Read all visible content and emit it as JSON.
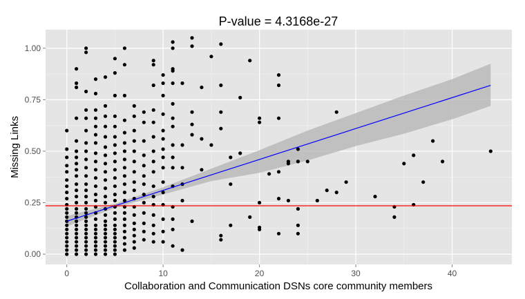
{
  "chart_data": {
    "type": "scatter",
    "title": "P-value = 4.3168e-27",
    "xlabel": "Collaboration and Communication DSNs core community members",
    "ylabel": "Missing Links",
    "xlim": [
      -2.2,
      46.2
    ],
    "ylim": [
      -0.05,
      1.09
    ],
    "x_ticks": [
      0,
      10,
      20,
      30,
      40
    ],
    "y_ticks": [
      0.0,
      0.25,
      0.5,
      0.75,
      1.0
    ],
    "x_tick_labels": [
      "0",
      "10",
      "20",
      "30",
      "40"
    ],
    "y_tick_labels": [
      "0.00",
      "0.25",
      "0.50",
      "0.75",
      "1.00"
    ],
    "grid": true,
    "background": "#e5e5e5",
    "point_color": "#000000",
    "points": [
      [
        0,
        0.0
      ],
      [
        0,
        0.02
      ],
      [
        0,
        0.04
      ],
      [
        0,
        0.06
      ],
      [
        0,
        0.08
      ],
      [
        0,
        0.1
      ],
      [
        0,
        0.12
      ],
      [
        0,
        0.14
      ],
      [
        0,
        0.16
      ],
      [
        0,
        0.18
      ],
      [
        0,
        0.2
      ],
      [
        0,
        0.22
      ],
      [
        0,
        0.24
      ],
      [
        0,
        0.27
      ],
      [
        0,
        0.3
      ],
      [
        0,
        0.33
      ],
      [
        0,
        0.36
      ],
      [
        0,
        0.4
      ],
      [
        0,
        0.43
      ],
      [
        0,
        0.47
      ],
      [
        0,
        0.51
      ],
      [
        0,
        0.6
      ],
      [
        1,
        0.0
      ],
      [
        1,
        0.02
      ],
      [
        1,
        0.04
      ],
      [
        1,
        0.06
      ],
      [
        1,
        0.08
      ],
      [
        1,
        0.1
      ],
      [
        1,
        0.12
      ],
      [
        1,
        0.14
      ],
      [
        1,
        0.16
      ],
      [
        1,
        0.18
      ],
      [
        1,
        0.2
      ],
      [
        1,
        0.22
      ],
      [
        1,
        0.25
      ],
      [
        1,
        0.28
      ],
      [
        1,
        0.31
      ],
      [
        1,
        0.34
      ],
      [
        1,
        0.38
      ],
      [
        1,
        0.41
      ],
      [
        1,
        0.44
      ],
      [
        1,
        0.47
      ],
      [
        1,
        0.5
      ],
      [
        1,
        0.55
      ],
      [
        1,
        0.66
      ],
      [
        1,
        0.81
      ],
      [
        1,
        0.83
      ],
      [
        1,
        0.9
      ],
      [
        2,
        0.0
      ],
      [
        2,
        0.02
      ],
      [
        2,
        0.04
      ],
      [
        2,
        0.06
      ],
      [
        2,
        0.08
      ],
      [
        2,
        0.1
      ],
      [
        2,
        0.12
      ],
      [
        2,
        0.14
      ],
      [
        2,
        0.16
      ],
      [
        2,
        0.18
      ],
      [
        2,
        0.2
      ],
      [
        2,
        0.22
      ],
      [
        2,
        0.25
      ],
      [
        2,
        0.28
      ],
      [
        2,
        0.31
      ],
      [
        2,
        0.34
      ],
      [
        2,
        0.38
      ],
      [
        2,
        0.42
      ],
      [
        2,
        0.46
      ],
      [
        2,
        0.5
      ],
      [
        2,
        0.54
      ],
      [
        2,
        0.6
      ],
      [
        2,
        0.66
      ],
      [
        2,
        0.7
      ],
      [
        2,
        0.79
      ],
      [
        2,
        0.98
      ],
      [
        2,
        1.0
      ],
      [
        3,
        0.0
      ],
      [
        3,
        0.02
      ],
      [
        3,
        0.04
      ],
      [
        3,
        0.06
      ],
      [
        3,
        0.08
      ],
      [
        3,
        0.1
      ],
      [
        3,
        0.12
      ],
      [
        3,
        0.14
      ],
      [
        3,
        0.17
      ],
      [
        3,
        0.2
      ],
      [
        3,
        0.23
      ],
      [
        3,
        0.26
      ],
      [
        3,
        0.29
      ],
      [
        3,
        0.33
      ],
      [
        3,
        0.37
      ],
      [
        3,
        0.41
      ],
      [
        3,
        0.45
      ],
      [
        3,
        0.49
      ],
      [
        3,
        0.54
      ],
      [
        3,
        0.58
      ],
      [
        3,
        0.62
      ],
      [
        3,
        0.66
      ],
      [
        3,
        0.7
      ],
      [
        3,
        0.78
      ],
      [
        3,
        0.85
      ],
      [
        4,
        0.0
      ],
      [
        4,
        0.02
      ],
      [
        4,
        0.04
      ],
      [
        4,
        0.06
      ],
      [
        4,
        0.08
      ],
      [
        4,
        0.1
      ],
      [
        4,
        0.12
      ],
      [
        4,
        0.14
      ],
      [
        4,
        0.16
      ],
      [
        4,
        0.19
      ],
      [
        4,
        0.22
      ],
      [
        4,
        0.25
      ],
      [
        4,
        0.28
      ],
      [
        4,
        0.32
      ],
      [
        4,
        0.36
      ],
      [
        4,
        0.4
      ],
      [
        4,
        0.44
      ],
      [
        4,
        0.48
      ],
      [
        4,
        0.52
      ],
      [
        4,
        0.57
      ],
      [
        4,
        0.62
      ],
      [
        4,
        0.67
      ],
      [
        4,
        0.72
      ],
      [
        4,
        0.86
      ],
      [
        5,
        0.0
      ],
      [
        5,
        0.02
      ],
      [
        5,
        0.04
      ],
      [
        5,
        0.06
      ],
      [
        5,
        0.08
      ],
      [
        5,
        0.1
      ],
      [
        5,
        0.12
      ],
      [
        5,
        0.14
      ],
      [
        5,
        0.17
      ],
      [
        5,
        0.2
      ],
      [
        5,
        0.23
      ],
      [
        5,
        0.26
      ],
      [
        5,
        0.29
      ],
      [
        5,
        0.33
      ],
      [
        5,
        0.37
      ],
      [
        5,
        0.41
      ],
      [
        5,
        0.45
      ],
      [
        5,
        0.49
      ],
      [
        5,
        0.53
      ],
      [
        5,
        0.57
      ],
      [
        5,
        0.62
      ],
      [
        5,
        0.67
      ],
      [
        5,
        0.77
      ],
      [
        5,
        0.88
      ],
      [
        5,
        0.95
      ],
      [
        6,
        0.02
      ],
      [
        6,
        0.05
      ],
      [
        6,
        0.08
      ],
      [
        6,
        0.11
      ],
      [
        6,
        0.14
      ],
      [
        6,
        0.17
      ],
      [
        6,
        0.2
      ],
      [
        6,
        0.23
      ],
      [
        6,
        0.26
      ],
      [
        6,
        0.3
      ],
      [
        6,
        0.34
      ],
      [
        6,
        0.38
      ],
      [
        6,
        0.42
      ],
      [
        6,
        0.46
      ],
      [
        6,
        0.5
      ],
      [
        6,
        0.54
      ],
      [
        6,
        0.59
      ],
      [
        6,
        0.65
      ],
      [
        6,
        0.77
      ],
      [
        6,
        0.92
      ],
      [
        6,
        1.0
      ],
      [
        7,
        0.03
      ],
      [
        7,
        0.06
      ],
      [
        7,
        0.09
      ],
      [
        7,
        0.12
      ],
      [
        7,
        0.15
      ],
      [
        7,
        0.19
      ],
      [
        7,
        0.23
      ],
      [
        7,
        0.27
      ],
      [
        7,
        0.31
      ],
      [
        7,
        0.35
      ],
      [
        7,
        0.4
      ],
      [
        7,
        0.45
      ],
      [
        7,
        0.5
      ],
      [
        7,
        0.55
      ],
      [
        7,
        0.6
      ],
      [
        7,
        0.67
      ],
      [
        7,
        0.72
      ],
      [
        8,
        0.07
      ],
      [
        8,
        0.11
      ],
      [
        8,
        0.15
      ],
      [
        8,
        0.2
      ],
      [
        8,
        0.25
      ],
      [
        8,
        0.29
      ],
      [
        8,
        0.34
      ],
      [
        8,
        0.38
      ],
      [
        8,
        0.43
      ],
      [
        8,
        0.48
      ],
      [
        8,
        0.55
      ],
      [
        8,
        0.64
      ],
      [
        8,
        0.69
      ],
      [
        9,
        0.06
      ],
      [
        9,
        0.1
      ],
      [
        9,
        0.14
      ],
      [
        9,
        0.19
      ],
      [
        9,
        0.24
      ],
      [
        9,
        0.28
      ],
      [
        9,
        0.33
      ],
      [
        9,
        0.4
      ],
      [
        9,
        0.45
      ],
      [
        9,
        0.5
      ],
      [
        9,
        0.57
      ],
      [
        9,
        0.64
      ],
      [
        9,
        0.7
      ],
      [
        9,
        0.82
      ],
      [
        9,
        0.92
      ],
      [
        9,
        0.94
      ],
      [
        10,
        0.06
      ],
      [
        10,
        0.11
      ],
      [
        10,
        0.17
      ],
      [
        10,
        0.24
      ],
      [
        10,
        0.3
      ],
      [
        10,
        0.35
      ],
      [
        10,
        0.42
      ],
      [
        10,
        0.47
      ],
      [
        10,
        0.51
      ],
      [
        10,
        0.56
      ],
      [
        10,
        0.6
      ],
      [
        10,
        0.68
      ],
      [
        10,
        0.77
      ],
      [
        10,
        0.83
      ],
      [
        10,
        0.87
      ],
      [
        11,
        0.04
      ],
      [
        11,
        0.12
      ],
      [
        11,
        0.17
      ],
      [
        11,
        0.23
      ],
      [
        11,
        0.33
      ],
      [
        11,
        0.42
      ],
      [
        11,
        0.47
      ],
      [
        11,
        0.53
      ],
      [
        11,
        0.62
      ],
      [
        11,
        0.66
      ],
      [
        11,
        0.73
      ],
      [
        11,
        0.83
      ],
      [
        11,
        0.89
      ],
      [
        11,
        0.9
      ],
      [
        11,
        1.0
      ],
      [
        11,
        1.03
      ],
      [
        12,
        0.02
      ],
      [
        12,
        0.26
      ],
      [
        12,
        0.34
      ],
      [
        12,
        0.42
      ],
      [
        12,
        0.53
      ],
      [
        12,
        0.83
      ],
      [
        13,
        0.16
      ],
      [
        13,
        0.58
      ],
      [
        13,
        0.63
      ],
      [
        13,
        0.69
      ],
      [
        13,
        1.01
      ],
      [
        13,
        1.05
      ],
      [
        14,
        0.41
      ],
      [
        14,
        0.56
      ],
      [
        14,
        0.81
      ],
      [
        15,
        0.53
      ],
      [
        15,
        0.96
      ],
      [
        16,
        0.07
      ],
      [
        16,
        0.09
      ],
      [
        16,
        0.61
      ],
      [
        16,
        0.69
      ],
      [
        16,
        0.82
      ],
      [
        16,
        1.02
      ],
      [
        17,
        0.14
      ],
      [
        17,
        0.34
      ],
      [
        17,
        0.47
      ],
      [
        18,
        0.49
      ],
      [
        18,
        0.76
      ],
      [
        19,
        0.18
      ],
      [
        19,
        0.94
      ],
      [
        20,
        0.12
      ],
      [
        20,
        0.13
      ],
      [
        20,
        0.25
      ],
      [
        20,
        0.64
      ],
      [
        20,
        0.66
      ],
      [
        21,
        0.39
      ],
      [
        22,
        0.1
      ],
      [
        22,
        0.27
      ],
      [
        22,
        0.4
      ],
      [
        22,
        0.66
      ],
      [
        22,
        0.82
      ],
      [
        22,
        0.87
      ],
      [
        23,
        0.26
      ],
      [
        23,
        0.44
      ],
      [
        23,
        0.45
      ],
      [
        24,
        0.1
      ],
      [
        24,
        0.14
      ],
      [
        24,
        0.22
      ],
      [
        24,
        0.45
      ],
      [
        24,
        0.51
      ],
      [
        25,
        0.45
      ],
      [
        26,
        0.26
      ],
      [
        27,
        0.31
      ],
      [
        28,
        0.3
      ],
      [
        28,
        0.69
      ],
      [
        29,
        0.35
      ],
      [
        32,
        0.28
      ],
      [
        34,
        0.18
      ],
      [
        34,
        0.23
      ],
      [
        35,
        0.44
      ],
      [
        36,
        0.24
      ],
      [
        36,
        0.48
      ],
      [
        37,
        0.35
      ],
      [
        38,
        0.55
      ],
      [
        39,
        0.45
      ],
      [
        44,
        0.5
      ]
    ],
    "fit_line": {
      "x": [
        0,
        44
      ],
      "y": [
        0.16,
        0.82
      ],
      "color": "#0000ff"
    },
    "confidence_band": {
      "x": [
        0,
        5,
        10,
        15,
        20,
        25,
        30,
        35,
        40,
        44
      ],
      "lower": [
        0.135,
        0.225,
        0.29,
        0.355,
        0.395,
        0.455,
        0.525,
        0.585,
        0.655,
        0.72
      ],
      "upper": [
        0.185,
        0.245,
        0.325,
        0.415,
        0.505,
        0.6,
        0.685,
        0.77,
        0.85,
        0.925
      ],
      "color": "#b3b3b3"
    },
    "reference_line": {
      "y": 0.235,
      "color": "#ff0000"
    }
  }
}
